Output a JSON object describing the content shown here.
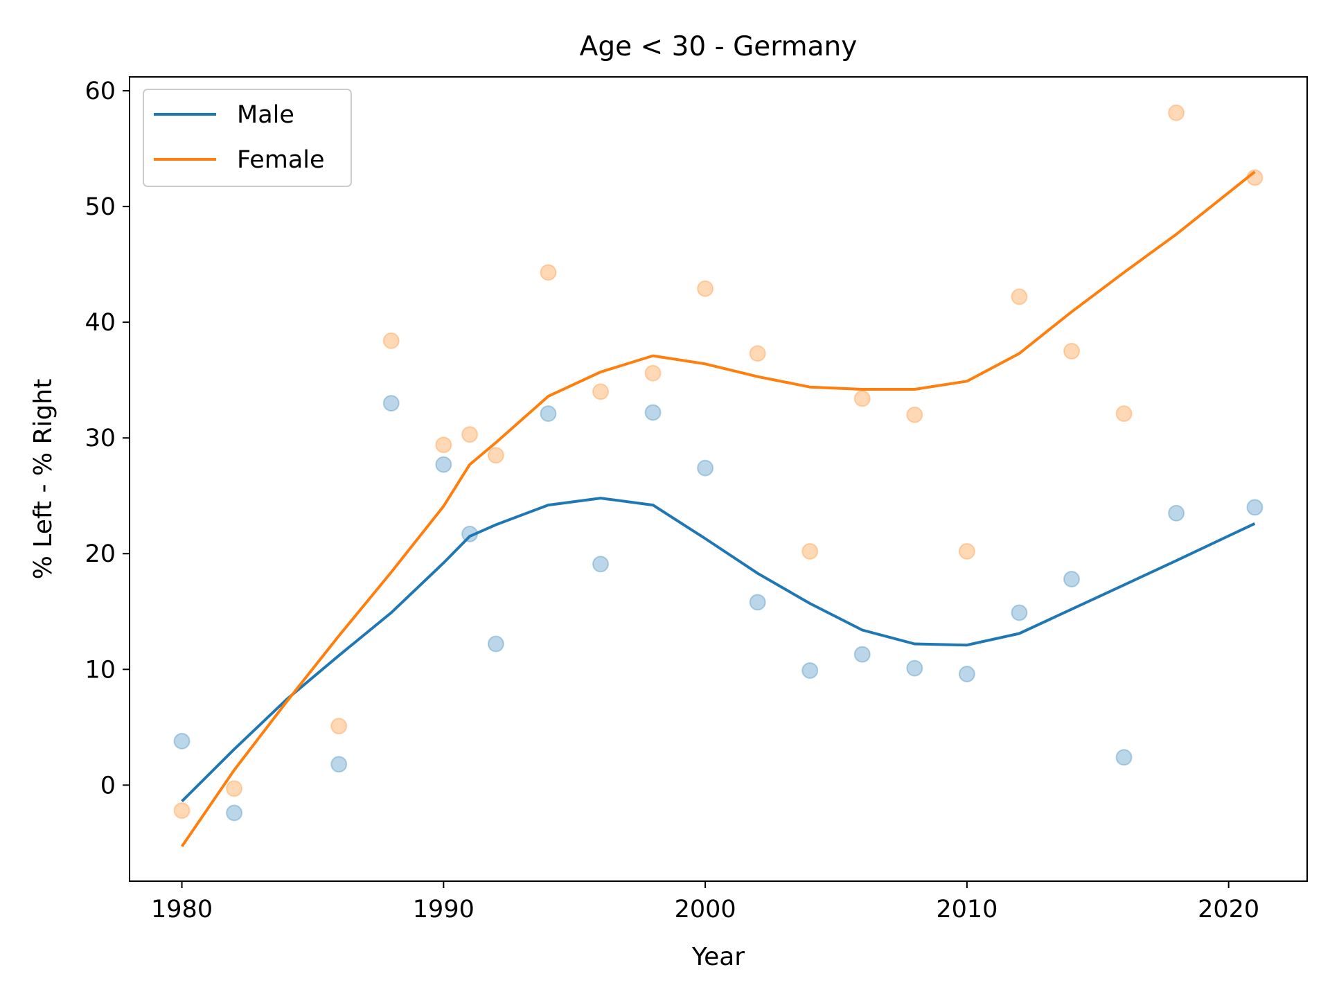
{
  "chart_data": {
    "type": "scatter",
    "title": "Age < 30 - Germany",
    "xlabel": "Year",
    "ylabel": "% Left - % Right",
    "xlim": [
      1978,
      2023
    ],
    "ylim": [
      -8.3,
      61.2
    ],
    "xticks": [
      1980,
      1990,
      2000,
      2010,
      2020
    ],
    "yticks": [
      0,
      10,
      20,
      30,
      40,
      50,
      60
    ],
    "grid": false,
    "legend": {
      "position": "upper-left",
      "labels": [
        "Male",
        "Female"
      ]
    },
    "series": [
      {
        "name": "Male",
        "color": "#1f77b4",
        "points": [
          [
            1980,
            3.8
          ],
          [
            1982,
            -2.4
          ],
          [
            1986,
            1.8
          ],
          [
            1988,
            33.0
          ],
          [
            1990,
            27.7
          ],
          [
            1991,
            21.7
          ],
          [
            1992,
            12.2
          ],
          [
            1994,
            32.1
          ],
          [
            1996,
            19.1
          ],
          [
            1998,
            32.2
          ],
          [
            2000,
            27.4
          ],
          [
            2002,
            15.8
          ],
          [
            2004,
            9.9
          ],
          [
            2006,
            11.3
          ],
          [
            2008,
            10.1
          ],
          [
            2010,
            9.6
          ],
          [
            2012,
            14.9
          ],
          [
            2014,
            17.8
          ],
          [
            2016,
            2.4
          ],
          [
            2018,
            23.5
          ],
          [
            2021,
            24.0
          ]
        ],
        "trend": [
          [
            1980,
            -1.4
          ],
          [
            1982,
            3.1
          ],
          [
            1984,
            7.4
          ],
          [
            1986,
            11.2
          ],
          [
            1988,
            14.9
          ],
          [
            1990,
            19.2
          ],
          [
            1991,
            21.5
          ],
          [
            1992,
            22.5
          ],
          [
            1994,
            24.2
          ],
          [
            1996,
            24.8
          ],
          [
            1998,
            24.2
          ],
          [
            2000,
            21.3
          ],
          [
            2002,
            18.3
          ],
          [
            2004,
            15.7
          ],
          [
            2006,
            13.4
          ],
          [
            2008,
            12.2
          ],
          [
            2010,
            12.1
          ],
          [
            2012,
            13.1
          ],
          [
            2014,
            15.2
          ],
          [
            2016,
            17.3
          ],
          [
            2018,
            19.4
          ],
          [
            2021,
            22.6
          ]
        ]
      },
      {
        "name": "Female",
        "color": "#ff7f0e",
        "points": [
          [
            1980,
            -2.2
          ],
          [
            1982,
            -0.3
          ],
          [
            1986,
            5.1
          ],
          [
            1988,
            38.4
          ],
          [
            1990,
            29.4
          ],
          [
            1991,
            30.3
          ],
          [
            1992,
            28.5
          ],
          [
            1994,
            44.3
          ],
          [
            1996,
            34.0
          ],
          [
            1998,
            35.6
          ],
          [
            2000,
            42.9
          ],
          [
            2002,
            37.3
          ],
          [
            2004,
            20.2
          ],
          [
            2006,
            33.4
          ],
          [
            2008,
            32.0
          ],
          [
            2010,
            20.2
          ],
          [
            2012,
            42.2
          ],
          [
            2014,
            37.5
          ],
          [
            2016,
            32.1
          ],
          [
            2018,
            58.1
          ],
          [
            2021,
            52.5
          ]
        ],
        "trend": [
          [
            1980,
            -5.3
          ],
          [
            1982,
            1.3
          ],
          [
            1984,
            7.2
          ],
          [
            1986,
            12.9
          ],
          [
            1988,
            18.4
          ],
          [
            1990,
            24.1
          ],
          [
            1991,
            27.7
          ],
          [
            1992,
            29.6
          ],
          [
            1994,
            33.6
          ],
          [
            1996,
            35.7
          ],
          [
            1998,
            37.1
          ],
          [
            2000,
            36.4
          ],
          [
            2002,
            35.3
          ],
          [
            2004,
            34.4
          ],
          [
            2006,
            34.2
          ],
          [
            2008,
            34.2
          ],
          [
            2010,
            34.9
          ],
          [
            2012,
            37.3
          ],
          [
            2014,
            40.9
          ],
          [
            2016,
            44.3
          ],
          [
            2018,
            47.6
          ],
          [
            2021,
            53.0
          ]
        ]
      }
    ]
  }
}
